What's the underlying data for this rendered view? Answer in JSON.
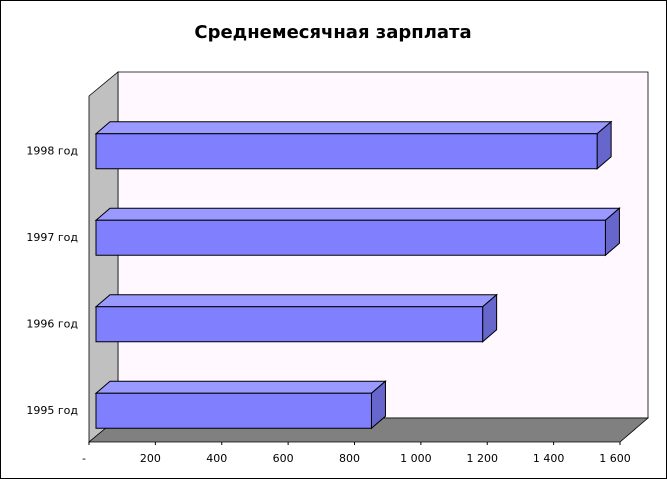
{
  "chart_data": {
    "type": "bar3d_horizontal",
    "title": "Среднемесячная зарплата",
    "categories": [
      "1995 год",
      "1996 год",
      "1997 год",
      "1998 год"
    ],
    "values": [
      830,
      1165,
      1535,
      1510
    ],
    "color": "#8080ff",
    "xlim": [
      0,
      1600
    ],
    "xticks": [
      {
        "value": 0,
        "label": "-"
      },
      200,
      400,
      600,
      800,
      {
        "value": 1000,
        "label": "1 000"
      },
      {
        "value": 1200,
        "label": "1 200"
      },
      {
        "value": 1400,
        "label": "1 400"
      },
      {
        "value": 1600,
        "label": "1 600"
      }
    ]
  }
}
